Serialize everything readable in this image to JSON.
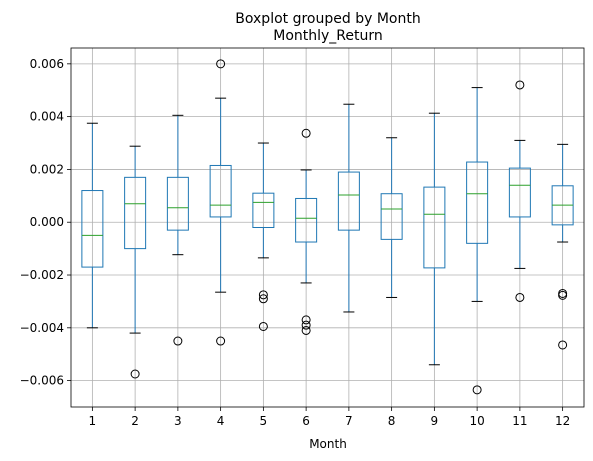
{
  "chart_data": {
    "type": "boxplot",
    "title": "Boxplot grouped by Month",
    "subtitle": "Monthly_Return",
    "xlabel": "Month",
    "ylabel": "",
    "ylim": [
      -0.007,
      0.0066
    ],
    "yticks": [
      -0.006,
      -0.004,
      -0.002,
      0.0,
      0.002,
      0.004,
      0.006
    ],
    "ytick_labels": [
      "−0.006",
      "−0.004",
      "−0.002",
      "0.000",
      "0.002",
      "0.004",
      "0.006"
    ],
    "grid": true,
    "colors": {
      "box": "#1f77b4",
      "median": "#2ca02c",
      "whisker_cap": "#000000",
      "grid": "#b0b0b0"
    },
    "categories": [
      "1",
      "2",
      "3",
      "4",
      "5",
      "6",
      "7",
      "8",
      "9",
      "10",
      "11",
      "12"
    ],
    "boxes": [
      {
        "month": "1",
        "whislo": -0.004,
        "q1": -0.0017,
        "median": -0.0005,
        "q3": 0.0012,
        "whishi": 0.00375,
        "fliers": []
      },
      {
        "month": "2",
        "whislo": -0.0042,
        "q1": -0.001,
        "median": 0.0007,
        "q3": 0.0017,
        "whishi": 0.00288,
        "fliers": [
          -0.00575
        ]
      },
      {
        "month": "3",
        "whislo": -0.00123,
        "q1": -0.0003,
        "median": 0.00055,
        "q3": 0.0017,
        "whishi": 0.00405,
        "fliers": [
          -0.0045
        ]
      },
      {
        "month": "4",
        "whislo": -0.00265,
        "q1": 0.0002,
        "median": 0.00065,
        "q3": 0.00215,
        "whishi": 0.0047,
        "fliers": [
          0.006,
          -0.0045
        ]
      },
      {
        "month": "5",
        "whislo": -0.00135,
        "q1": -0.0002,
        "median": 0.00075,
        "q3": 0.0011,
        "whishi": 0.003,
        "fliers": [
          -0.00275,
          -0.0029,
          -0.00395
        ]
      },
      {
        "month": "6",
        "whislo": -0.0023,
        "q1": -0.00075,
        "median": 0.00015,
        "q3": 0.0009,
        "whishi": 0.00198,
        "fliers": [
          0.00337,
          -0.0037,
          -0.0039,
          -0.0041
        ]
      },
      {
        "month": "7",
        "whislo": -0.0034,
        "q1": -0.0003,
        "median": 0.00103,
        "q3": 0.0019,
        "whishi": 0.00447,
        "fliers": []
      },
      {
        "month": "8",
        "whislo": -0.00285,
        "q1": -0.00065,
        "median": 0.0005,
        "q3": 0.00108,
        "whishi": 0.0032,
        "fliers": []
      },
      {
        "month": "9",
        "whislo": -0.0054,
        "q1": -0.00173,
        "median": 0.0003,
        "q3": 0.00133,
        "whishi": 0.00413,
        "fliers": []
      },
      {
        "month": "10",
        "whislo": -0.003,
        "q1": -0.0008,
        "median": 0.00108,
        "q3": 0.00228,
        "whishi": 0.0051,
        "fliers": [
          -0.00635
        ]
      },
      {
        "month": "11",
        "whislo": -0.00175,
        "q1": 0.0002,
        "median": 0.0014,
        "q3": 0.00205,
        "whishi": 0.0031,
        "fliers": [
          0.0052,
          -0.00285
        ]
      },
      {
        "month": "12",
        "whislo": -0.00075,
        "q1": -0.0001,
        "median": 0.00065,
        "q3": 0.00138,
        "whishi": 0.00295,
        "fliers": [
          -0.0027,
          -0.00277,
          -0.00465
        ]
      }
    ]
  }
}
